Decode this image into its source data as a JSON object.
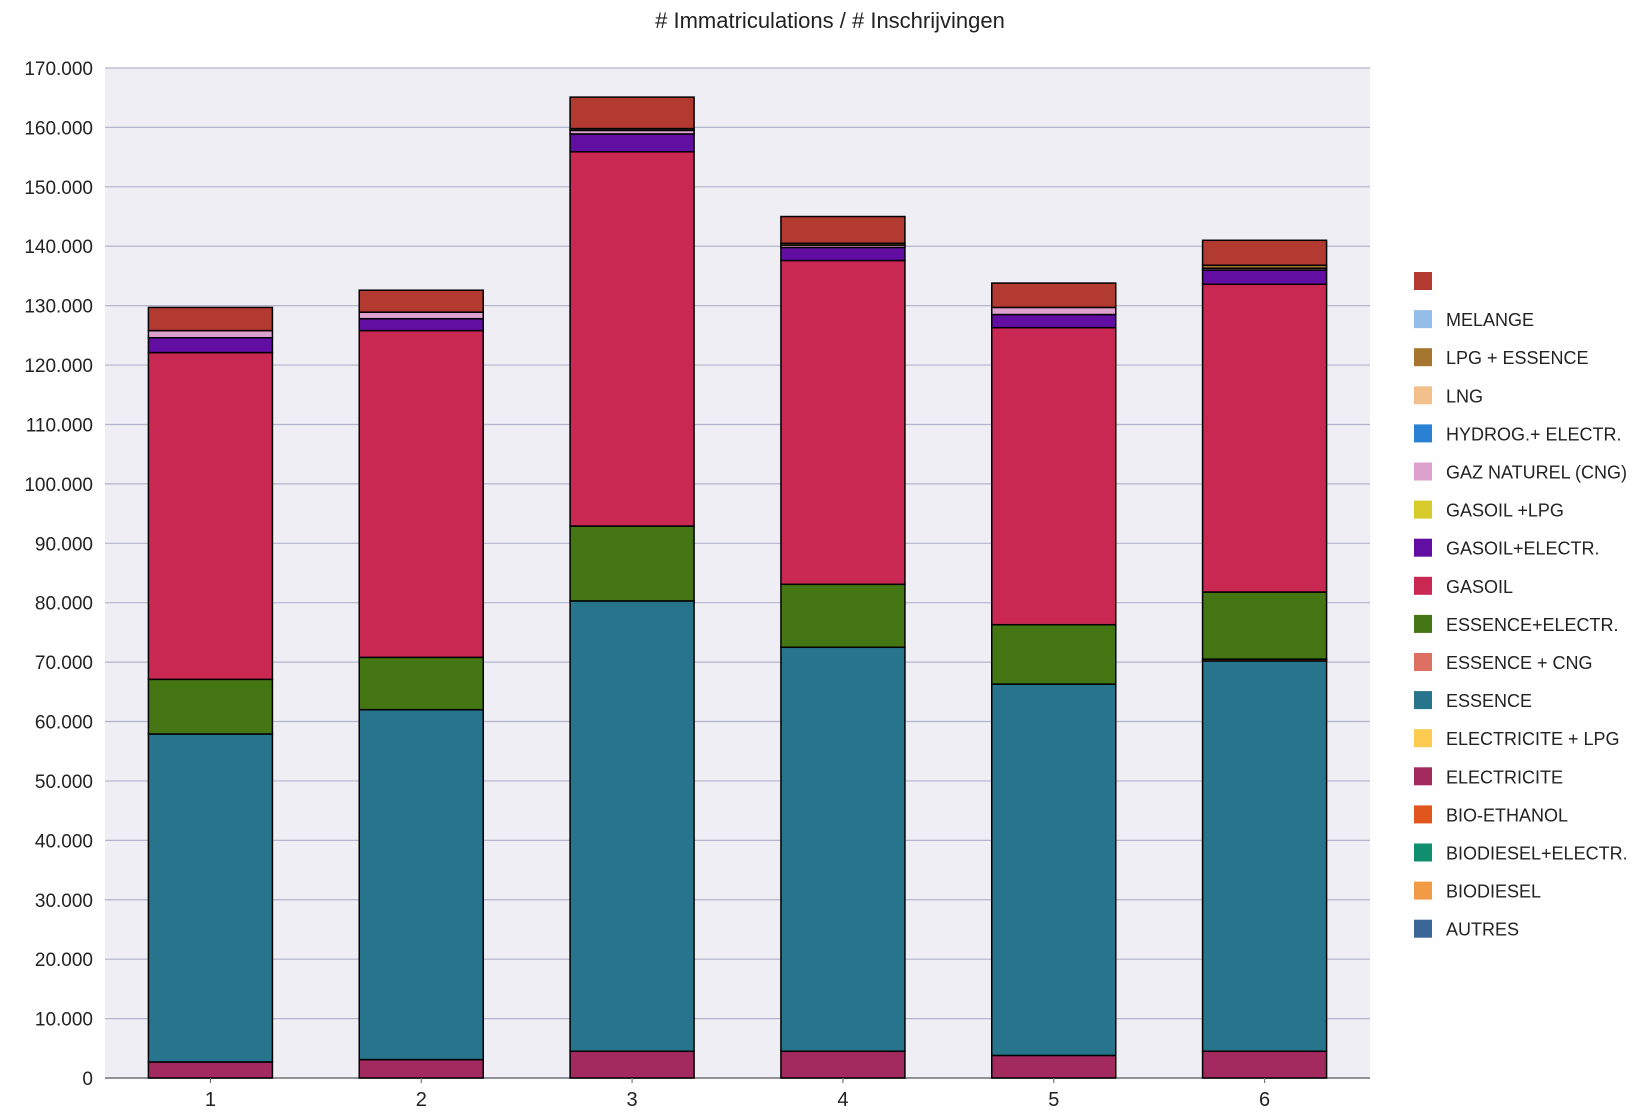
{
  "chart_data": {
    "type": "bar",
    "stacked": true,
    "title": "# Immatriculations / # Inschrijvingen",
    "xlabel": "",
    "ylabel": "",
    "ylim": [
      0,
      170000
    ],
    "yticks": [
      0,
      10000,
      20000,
      30000,
      40000,
      50000,
      60000,
      70000,
      80000,
      90000,
      100000,
      110000,
      120000,
      130000,
      140000,
      150000,
      160000,
      170000
    ],
    "ytick_labels": [
      "0",
      "10.000",
      "20.000",
      "30.000",
      "40.000",
      "50.000",
      "60.000",
      "70.000",
      "80.000",
      "90.000",
      "100.000",
      "110.000",
      "120.000",
      "130.000",
      "140.000",
      "150.000",
      "160.000",
      "170.000"
    ],
    "grid": true,
    "legend_position": "right",
    "categories": [
      "1",
      "2",
      "3",
      "4",
      "5",
      "6"
    ],
    "series": [
      {
        "name": "AUTRES",
        "color": "#3b6698",
        "values": [
          0,
          0,
          0,
          0,
          0,
          0
        ]
      },
      {
        "name": "BIODIESEL",
        "color": "#f29b46",
        "values": [
          0,
          0,
          0,
          0,
          0,
          0
        ]
      },
      {
        "name": "BIODIESEL+ELECTR.",
        "color": "#0f8f6f",
        "values": [
          0,
          0,
          0,
          0,
          0,
          0
        ]
      },
      {
        "name": "BIO-ETHANOL",
        "color": "#e0561b",
        "values": [
          0,
          0,
          0,
          0,
          0,
          0
        ]
      },
      {
        "name": "ELECTRICITE",
        "color": "#a32a5e",
        "values": [
          2700,
          3100,
          4500,
          4500,
          3800,
          4500
        ]
      },
      {
        "name": "ELECTRICITE + LPG",
        "color": "#fccb4f",
        "values": [
          0,
          0,
          0,
          0,
          0,
          0
        ]
      },
      {
        "name": "ESSENCE",
        "color": "#26758c",
        "values": [
          55200,
          58900,
          75800,
          68000,
          62500,
          65700
        ]
      },
      {
        "name": "ESSENCE + CNG",
        "color": "#de6f63",
        "values": [
          0,
          0,
          0,
          0,
          0,
          300
        ]
      },
      {
        "name": "ESSENCE+ELECTR.",
        "color": "#447613",
        "values": [
          9200,
          8800,
          12600,
          10600,
          10000,
          11300
        ]
      },
      {
        "name": "GASOIL",
        "color": "#c92853",
        "values": [
          55000,
          55000,
          63000,
          54500,
          50000,
          51800
        ]
      },
      {
        "name": "GASOIL+ELECTR.",
        "color": "#630ea3",
        "values": [
          2500,
          2000,
          3000,
          2200,
          2200,
          2400
        ]
      },
      {
        "name": "GASOIL +LPG",
        "color": "#d6cb2b",
        "values": [
          0,
          0,
          0,
          0,
          0,
          0
        ]
      },
      {
        "name": "GAZ NATUREL (CNG)",
        "color": "#dea1cd",
        "values": [
          1200,
          1100,
          600,
          400,
          1200,
          300
        ]
      },
      {
        "name": "HYDROG.+ ELECTR.",
        "color": "#2a80d2",
        "values": [
          0,
          0,
          0,
          0,
          0,
          0
        ]
      },
      {
        "name": "LNG",
        "color": "#f2c08a",
        "values": [
          0,
          0,
          0,
          0,
          0,
          0
        ]
      },
      {
        "name": "LPG + ESSENCE",
        "color": "#a5762f",
        "values": [
          0,
          0,
          300,
          300,
          0,
          500
        ]
      },
      {
        "name": "MELANGE",
        "color": "#94bde8",
        "values": [
          0,
          0,
          0,
          0,
          0,
          0
        ]
      },
      {
        "name": "",
        "color": "#b23a30",
        "values": [
          3900,
          3700,
          5300,
          4500,
          4100,
          4200
        ]
      }
    ]
  }
}
